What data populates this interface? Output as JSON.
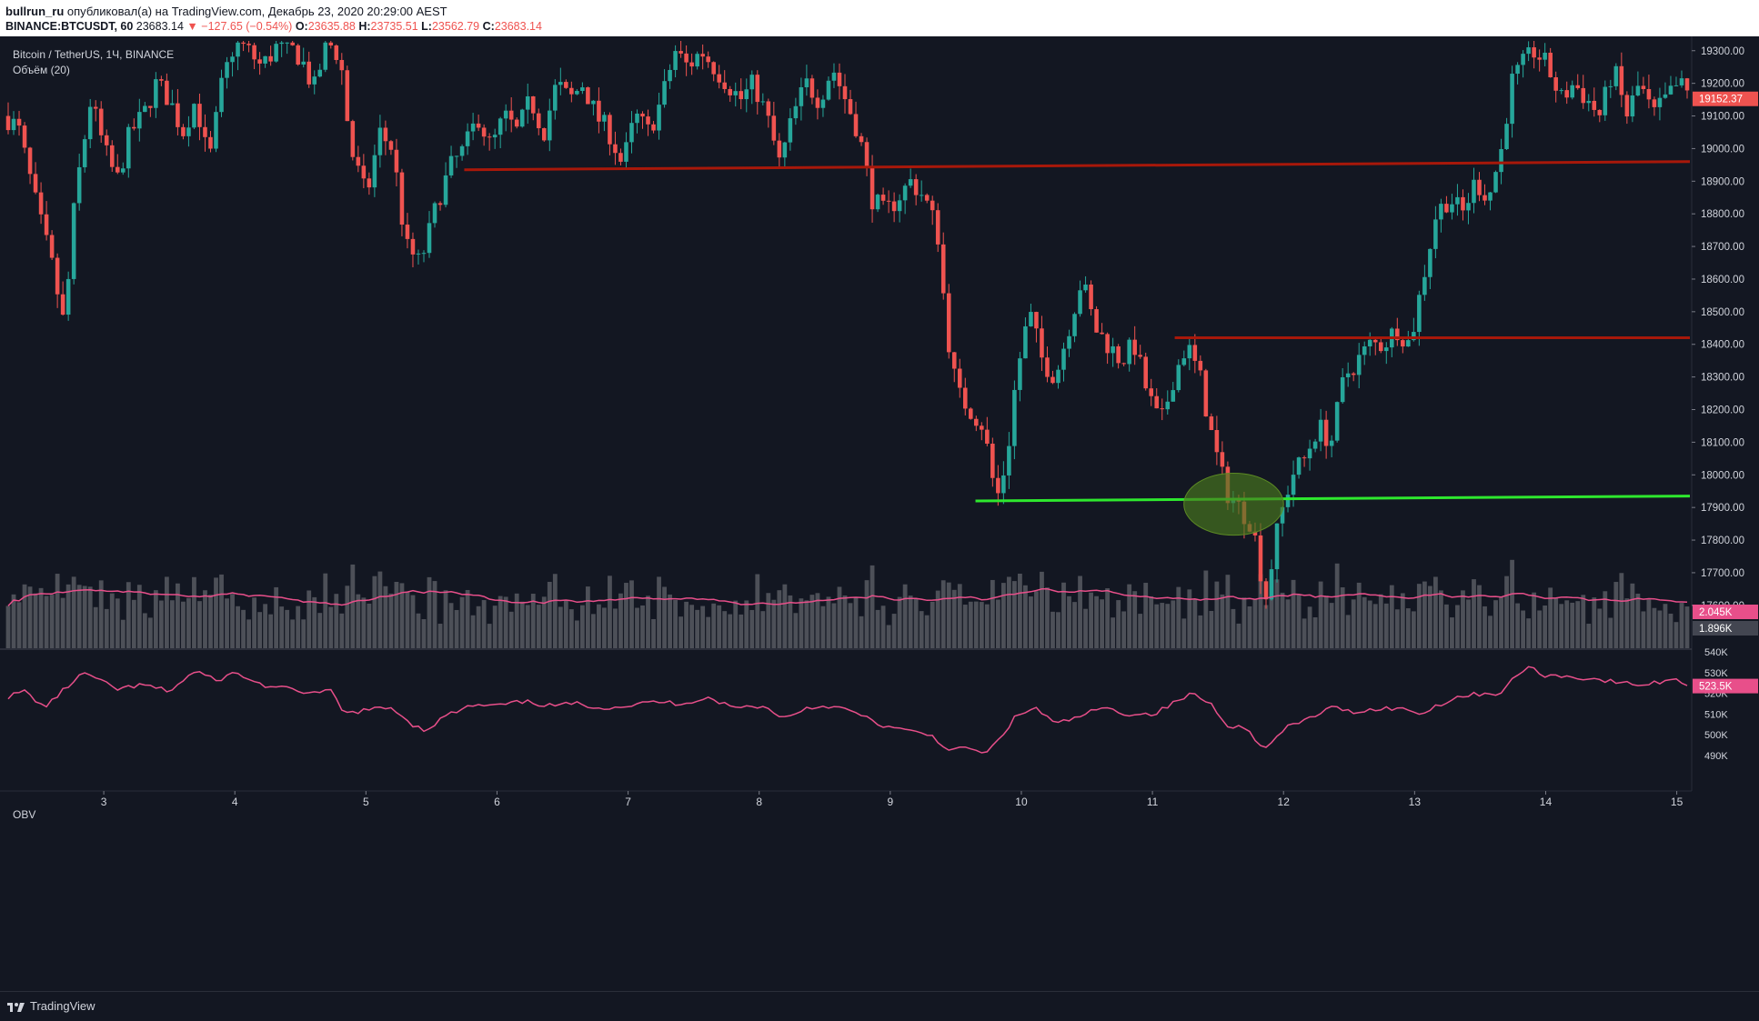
{
  "header": {
    "user": "bullrun_ru",
    "published": "опубликовал(а) на TradingView.com, Декабрь 23, 2020 20:29:00 AEST",
    "symbol": "BINANCE:BTCUSDT, 60",
    "last": "23683.14",
    "change": "−127.65 (−0.54%)",
    "o_label": "O:",
    "o": "23635.88",
    "h_label": "H:",
    "h": "23735.51",
    "l_label": "L:",
    "l": "23562.79",
    "c_label": "C:",
    "c": "23683.14"
  },
  "legend": {
    "title": "Bitcoin / TetherUS, 1Ч, BINANCE",
    "volume": "Объём (20)",
    "obv": "OBV"
  },
  "footer": {
    "brand": "TradingView"
  },
  "colors": {
    "background": "#131722",
    "up": "#26a69a",
    "down": "#ef5350",
    "resistance": "#a8180a",
    "support": "#2ee82e",
    "volume": "#4d5058",
    "volume_ma": "#e84f8a",
    "obv": "#e84f8a",
    "ellipse": "#4a7a1e"
  },
  "chart_data": [
    {
      "type": "candlestick",
      "title": "Bitcoin / TetherUS, 1Ч, BINANCE",
      "x_ticks": [
        "3",
        "4",
        "5",
        "6",
        "7",
        "8",
        "9",
        "10",
        "11",
        "12",
        "13",
        "14",
        "15"
      ],
      "x_range_days": [
        2.25,
        15.1
      ],
      "y_ticks": [
        17600,
        17700,
        17800,
        17900,
        18000,
        18100,
        18200,
        18300,
        18400,
        18500,
        18600,
        18700,
        18800,
        18900,
        19000,
        19100,
        19200,
        19300
      ],
      "y_tick_labels": [
        "17600.00",
        "17700.00",
        "17800.00",
        "17900.00",
        "18000.00",
        "18100.00",
        "18200.00",
        "18300.00",
        "18400.00",
        "18500.00",
        "18600.00",
        "18700.00",
        "18800.00",
        "18900.00",
        "19000.00",
        "19100.00",
        "19200.00",
        "19300.00"
      ],
      "ylim": [
        17580,
        19330
      ],
      "last_price_label": "19152.37",
      "last_price": 19152.37,
      "close_path": [
        [
          2.25,
          19100
        ],
        [
          2.35,
          19060
        ],
        [
          2.5,
          18800
        ],
        [
          2.6,
          18650
        ],
        [
          2.7,
          18450
        ],
        [
          2.78,
          18850
        ],
        [
          2.9,
          19150
        ],
        [
          3.0,
          19000
        ],
        [
          3.1,
          18900
        ],
        [
          3.2,
          19050
        ],
        [
          3.3,
          19100
        ],
        [
          3.4,
          19200
        ],
        [
          3.5,
          19150
        ],
        [
          3.6,
          19050
        ],
        [
          3.7,
          19150
        ],
        [
          3.8,
          18950
        ],
        [
          3.9,
          19200
        ],
        [
          4.0,
          19330
        ],
        [
          4.1,
          19300
        ],
        [
          4.2,
          19250
        ],
        [
          4.35,
          19330
        ],
        [
          4.5,
          19280
        ],
        [
          4.6,
          19180
        ],
        [
          4.7,
          19330
        ],
        [
          4.8,
          19280
        ],
        [
          4.88,
          19000
        ],
        [
          5.0,
          18850
        ],
        [
          5.1,
          19050
        ],
        [
          5.2,
          19000
        ],
        [
          5.3,
          18700
        ],
        [
          5.4,
          18650
        ],
        [
          5.45,
          18700
        ],
        [
          5.55,
          18850
        ],
        [
          5.65,
          18950
        ],
        [
          5.75,
          19000
        ],
        [
          5.85,
          19100
        ],
        [
          5.95,
          19000
        ],
        [
          6.05,
          19100
        ],
        [
          6.15,
          19050
        ],
        [
          6.25,
          19150
        ],
        [
          6.35,
          19050
        ],
        [
          6.45,
          19200
        ],
        [
          6.55,
          19150
        ],
        [
          6.65,
          19200
        ],
        [
          6.75,
          19100
        ],
        [
          6.85,
          19050
        ],
        [
          6.95,
          18950
        ],
        [
          7.05,
          19100
        ],
        [
          7.15,
          19050
        ],
        [
          7.25,
          19150
        ],
        [
          7.35,
          19300
        ],
        [
          7.45,
          19250
        ],
        [
          7.55,
          19300
        ],
        [
          7.65,
          19250
        ],
        [
          7.75,
          19200
        ],
        [
          7.85,
          19150
        ],
        [
          7.95,
          19200
        ],
        [
          8.05,
          19100
        ],
        [
          8.15,
          18950
        ],
        [
          8.25,
          19100
        ],
        [
          8.35,
          19200
        ],
        [
          8.45,
          19150
        ],
        [
          8.55,
          19250
        ],
        [
          8.65,
          19150
        ],
        [
          8.75,
          19050
        ],
        [
          8.85,
          18850
        ],
        [
          8.95,
          18800
        ],
        [
          9.05,
          18850
        ],
        [
          9.15,
          18900
        ],
        [
          9.25,
          18850
        ],
        [
          9.35,
          18750
        ],
        [
          9.42,
          18450
        ],
        [
          9.5,
          18250
        ],
        [
          9.6,
          18200
        ],
        [
          9.7,
          18150
        ],
        [
          9.8,
          17920
        ],
        [
          9.88,
          18050
        ],
        [
          9.95,
          18300
        ],
        [
          10.05,
          18500
        ],
        [
          10.15,
          18350
        ],
        [
          10.25,
          18300
        ],
        [
          10.35,
          18450
        ],
        [
          10.45,
          18600
        ],
        [
          10.55,
          18450
        ],
        [
          10.65,
          18400
        ],
        [
          10.75,
          18350
        ],
        [
          10.85,
          18400
        ],
        [
          10.95,
          18250
        ],
        [
          11.05,
          18150
        ],
        [
          11.15,
          18300
        ],
        [
          11.25,
          18400
        ],
        [
          11.35,
          18300
        ],
        [
          11.45,
          18100
        ],
        [
          11.55,
          17950
        ],
        [
          11.65,
          17900
        ],
        [
          11.75,
          17850
        ],
        [
          11.85,
          17620
        ],
        [
          11.95,
          17850
        ],
        [
          12.05,
          18000
        ],
        [
          12.15,
          18050
        ],
        [
          12.25,
          18150
        ],
        [
          12.35,
          18100
        ],
        [
          12.45,
          18300
        ],
        [
          12.55,
          18350
        ],
        [
          12.65,
          18400
        ],
        [
          12.75,
          18400
        ],
        [
          12.85,
          18450
        ],
        [
          12.95,
          18400
        ],
        [
          13.05,
          18600
        ],
        [
          13.15,
          18800
        ],
        [
          13.25,
          18850
        ],
        [
          13.35,
          18800
        ],
        [
          13.45,
          18900
        ],
        [
          13.55,
          18850
        ],
        [
          13.65,
          19000
        ],
        [
          13.72,
          19200
        ],
        [
          13.8,
          19250
        ],
        [
          13.9,
          19300
        ],
        [
          14.0,
          19250
        ],
        [
          14.1,
          19150
        ],
        [
          14.2,
          19200
        ],
        [
          14.3,
          19150
        ],
        [
          14.4,
          19100
        ],
        [
          14.5,
          19250
        ],
        [
          14.6,
          19100
        ],
        [
          14.7,
          19200
        ],
        [
          14.8,
          19100
        ],
        [
          14.9,
          19150
        ],
        [
          15.0,
          19200
        ],
        [
          15.1,
          19150
        ]
      ],
      "lines": [
        {
          "name": "resistance-upper",
          "from": [
            5.75,
            18935
          ],
          "to": [
            15.1,
            18960
          ]
        },
        {
          "name": "resistance-lower",
          "from": [
            11.17,
            18420
          ],
          "to": [
            15.1,
            18420
          ]
        },
        {
          "name": "support",
          "from": [
            9.65,
            17920
          ],
          "to": [
            15.1,
            17935
          ]
        }
      ],
      "highlight_ellipse": {
        "center": [
          11.62,
          17910
        ],
        "radius_days": 0.38,
        "radius_price": 95
      }
    },
    {
      "type": "bar",
      "title": "Объём (20)",
      "last_labels": [
        "2.045K",
        "1.896K"
      ]
    },
    {
      "type": "line",
      "title": "OBV",
      "y_ticks": [
        490,
        500,
        510,
        520,
        530,
        540
      ],
      "y_tick_labels": [
        "490K",
        "500K",
        "510K",
        "520K",
        "530K",
        "540K"
      ],
      "ylim": [
        486,
        540
      ],
      "last_value_label": "523.5K",
      "path": [
        [
          2.25,
          518
        ],
        [
          2.4,
          521
        ],
        [
          2.55,
          513
        ],
        [
          2.7,
          522
        ],
        [
          2.85,
          530
        ],
        [
          3.0,
          525
        ],
        [
          3.1,
          522
        ],
        [
          3.3,
          524
        ],
        [
          3.5,
          521
        ],
        [
          3.7,
          531
        ],
        [
          3.85,
          526
        ],
        [
          4.0,
          530
        ],
        [
          4.2,
          524
        ],
        [
          4.4,
          522
        ],
        [
          4.6,
          520
        ],
        [
          4.75,
          521
        ],
        [
          4.82,
          510
        ],
        [
          5.0,
          512
        ],
        [
          5.2,
          513
        ],
        [
          5.35,
          505
        ],
        [
          5.45,
          502
        ],
        [
          5.6,
          509
        ],
        [
          5.8,
          514
        ],
        [
          6.0,
          514
        ],
        [
          6.2,
          516
        ],
        [
          6.4,
          514
        ],
        [
          6.6,
          515
        ],
        [
          6.8,
          513
        ],
        [
          7.0,
          514
        ],
        [
          7.2,
          516
        ],
        [
          7.4,
          515
        ],
        [
          7.6,
          518
        ],
        [
          7.8,
          513
        ],
        [
          8.0,
          514
        ],
        [
          8.2,
          508
        ],
        [
          8.35,
          513
        ],
        [
          8.55,
          514
        ],
        [
          8.75,
          510
        ],
        [
          8.9,
          505
        ],
        [
          9.1,
          502
        ],
        [
          9.3,
          500
        ],
        [
          9.45,
          492
        ],
        [
          9.6,
          494
        ],
        [
          9.7,
          490
        ],
        [
          9.8,
          496
        ],
        [
          9.95,
          509
        ],
        [
          10.1,
          513
        ],
        [
          10.25,
          505
        ],
        [
          10.4,
          508
        ],
        [
          10.6,
          513
        ],
        [
          10.8,
          510
        ],
        [
          11.0,
          510
        ],
        [
          11.2,
          517
        ],
        [
          11.3,
          520
        ],
        [
          11.45,
          514
        ],
        [
          11.55,
          505
        ],
        [
          11.7,
          503
        ],
        [
          11.85,
          493
        ],
        [
          12.0,
          503
        ],
        [
          12.15,
          507
        ],
        [
          12.35,
          513
        ],
        [
          12.55,
          511
        ],
        [
          12.75,
          513
        ],
        [
          12.95,
          512
        ],
        [
          13.05,
          510
        ],
        [
          13.15,
          514
        ],
        [
          13.3,
          518
        ],
        [
          13.5,
          520
        ],
        [
          13.65,
          520
        ],
        [
          13.75,
          528
        ],
        [
          13.85,
          533
        ],
        [
          13.95,
          529
        ],
        [
          14.15,
          528
        ],
        [
          14.35,
          527
        ],
        [
          14.55,
          525
        ],
        [
          14.75,
          524
        ],
        [
          14.95,
          527
        ],
        [
          15.1,
          523.5
        ]
      ]
    }
  ]
}
